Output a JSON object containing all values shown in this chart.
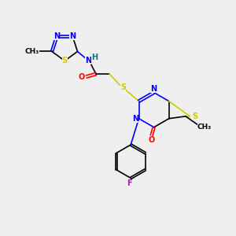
{
  "bg_color": "#efefef",
  "atom_colors": {
    "N": "#0000ff",
    "S": "#cccc00",
    "O": "#ff0000",
    "F": "#cc00cc",
    "C": "#000000",
    "H": "#008080"
  }
}
